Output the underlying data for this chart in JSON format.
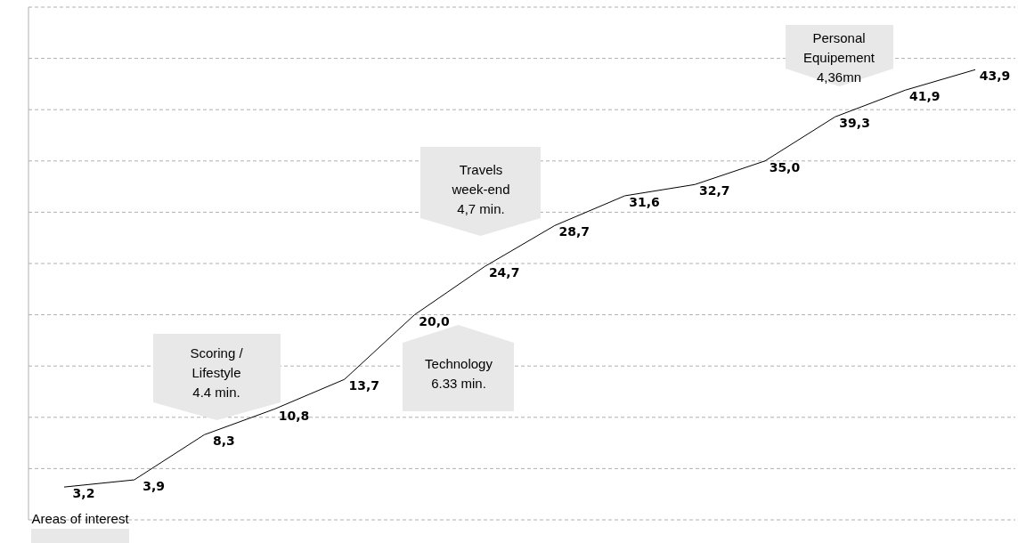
{
  "chart_data": {
    "type": "line",
    "categories": [
      null,
      null,
      null,
      null,
      null,
      null,
      null,
      null,
      null,
      null,
      null,
      null,
      null,
      null
    ],
    "series": [
      {
        "color": "#000000",
        "values": [
          3.2,
          3.9,
          8.3,
          10.8,
          13.7,
          20.0,
          24.7,
          28.7,
          31.6,
          32.7,
          35.0,
          39.3,
          41.9,
          43.9
        ],
        "value_labels": [
          "3,2",
          "3,9",
          "8,3",
          "10,8",
          "13,7",
          "20,0",
          "24,7",
          "28,7",
          "31,6",
          "32,7",
          "35,0",
          "39,3",
          "41,9",
          "43,9"
        ]
      }
    ],
    "ylim": [
      0,
      50
    ],
    "yticks": [
      0,
      5,
      10,
      15,
      20,
      25,
      30,
      35,
      40,
      45,
      50
    ],
    "tick_labels": false,
    "grid": "y",
    "marker": "none",
    "line_style": "solid",
    "annotations": [
      "Areas of interest",
      "Scoring /\nLifestyle\n4.4 min.",
      "Technology\n6.33 min.",
      "Travels\nweek-end\n4,7 min.",
      "Personal\nEquipement\n4,36mn"
    ]
  }
}
